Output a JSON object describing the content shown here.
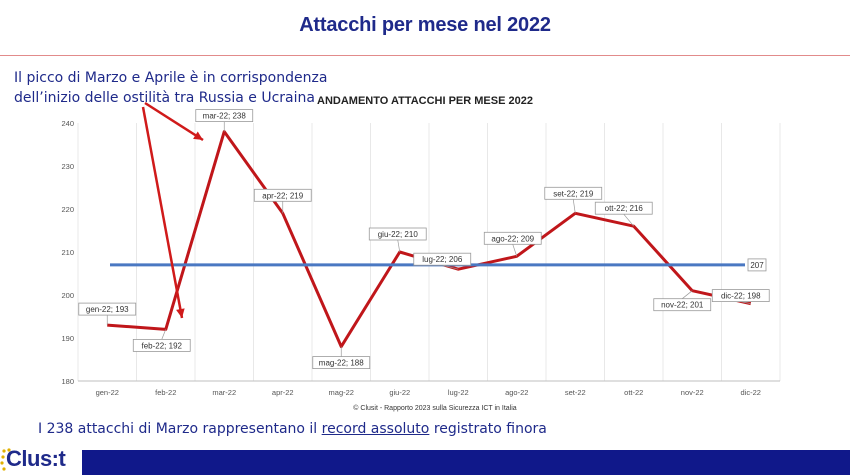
{
  "slide_title": "Attacchi per mese nel 2022",
  "annotation": {
    "line1": "Il picco di Marzo e Aprile è in corrispondenza",
    "line2": "dell’inizio delle ostilità tra Russia e Ucraina"
  },
  "footnote": {
    "part1": "I 238 attacchi di Marzo rappresentano il ",
    "underlined": "record assoluto",
    "part2": " registrato finora"
  },
  "source": "© Clusit - Rapporto 2023 sulla Sicurezza ICT in Italia",
  "logo_text": "Clus:t",
  "colors": {
    "title": "#1f2a8a",
    "series": "#c0161a",
    "average": "#4a78c2",
    "footer": "#10188a",
    "annotation_arrow": "#d01a1a"
  },
  "chart_data": {
    "type": "line",
    "title": "ANDAMENTO ATTACCHI PER MESE 2022",
    "categories": [
      "gen-22",
      "feb-22",
      "mar-22",
      "apr-22",
      "mag-22",
      "giu-22",
      "lug-22",
      "ago-22",
      "set-22",
      "ott-22",
      "nov-22",
      "dic-22"
    ],
    "series": [
      {
        "values": [
          193,
          192,
          238,
          219,
          188,
          210,
          206,
          209,
          219,
          216,
          201,
          198
        ]
      }
    ],
    "average": {
      "value": 207,
      "label": "207"
    },
    "point_labels": [
      "gen-22; 193",
      "feb-22; 192",
      "mar-22; 238",
      "apr-22; 219",
      "mag-22; 188",
      "giu-22; 210",
      "lug-22; 206",
      "ago-22; 209",
      "set-22; 219",
      "ott-22; 216",
      "nov-22; 201",
      "dic-22; 198"
    ],
    "ylim": [
      180,
      240
    ],
    "yticks": [
      180,
      190,
      200,
      210,
      220,
      230,
      240
    ],
    "grid": "vertical"
  }
}
